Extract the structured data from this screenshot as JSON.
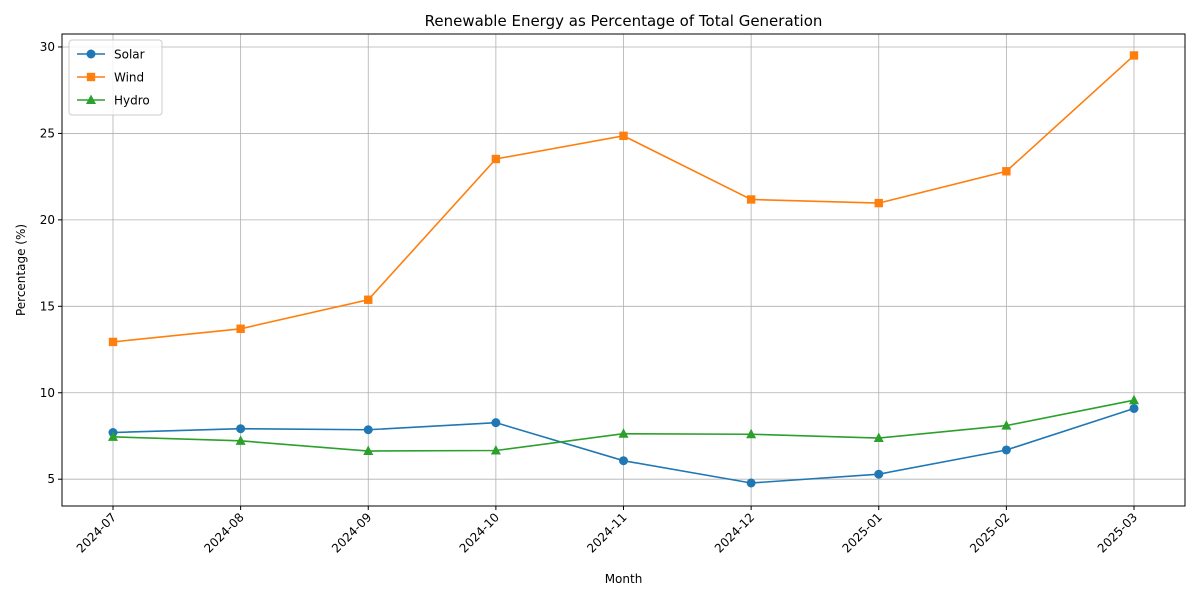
{
  "chart_data": {
    "type": "line",
    "title": "Renewable Energy as Percentage of Total Generation",
    "xlabel": "Month",
    "ylabel": "Percentage (%)",
    "categories": [
      "2024-07",
      "2024-08",
      "2024-09",
      "2024-10",
      "2024-11",
      "2024-12",
      "2025-01",
      "2025-02",
      "2025-03"
    ],
    "ylim": [
      3.45,
      30.75
    ],
    "yticks": [
      5,
      10,
      15,
      20,
      25,
      30
    ],
    "grid": true,
    "legend_position": "upper-left",
    "series": [
      {
        "name": "Solar",
        "color": "#1f77b4",
        "marker": "circle",
        "values": [
          7.7,
          7.92,
          7.86,
          8.27,
          6.07,
          4.78,
          5.29,
          6.69,
          9.09
        ]
      },
      {
        "name": "Wind",
        "color": "#ff7f0e",
        "marker": "square",
        "values": [
          12.94,
          13.7,
          15.38,
          23.52,
          24.86,
          21.18,
          20.97,
          22.81,
          29.51
        ]
      },
      {
        "name": "Hydro",
        "color": "#2ca02c",
        "marker": "triangle",
        "values": [
          7.45,
          7.22,
          6.63,
          6.66,
          7.63,
          7.6,
          7.38,
          8.1,
          9.57
        ]
      }
    ]
  }
}
